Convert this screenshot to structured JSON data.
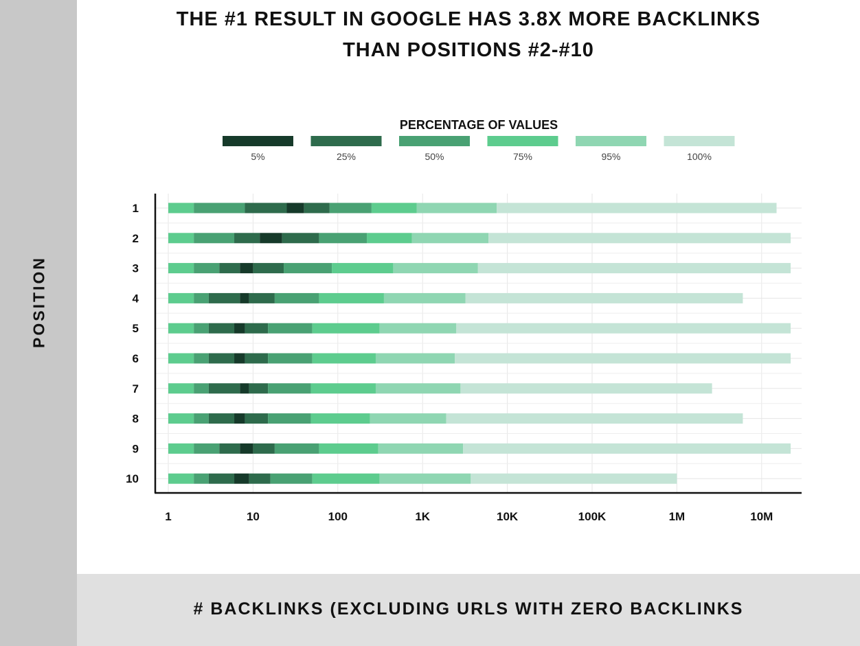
{
  "chart_data": {
    "type": "bar",
    "subtype": "stacked-percentile-range",
    "title_lines": [
      "THE #1 RESULT IN GOOGLE HAS 3.8X MORE BACKLINKS",
      "THAN POSITIONS #2-#10"
    ],
    "ylabel": "POSITION",
    "xlabel": "# BACKLINKS (EXCLUDING URLS WITH ZERO BACKLINKS",
    "x_scale": "log",
    "xlim": [
      1,
      25000000
    ],
    "x_ticks": [
      {
        "value": 1,
        "label": "1"
      },
      {
        "value": 10,
        "label": "10"
      },
      {
        "value": 100,
        "label": "100"
      },
      {
        "value": 1000,
        "label": "1K"
      },
      {
        "value": 10000,
        "label": "10K"
      },
      {
        "value": 100000,
        "label": "100K"
      },
      {
        "value": 1000000,
        "label": "1M"
      },
      {
        "value": 10000000,
        "label": "10M"
      }
    ],
    "grid": true,
    "legend": {
      "title": "PERCENTAGE OF VALUES",
      "placement": "top-center",
      "entries": [
        {
          "label": "5%",
          "color": "#163a2a"
        },
        {
          "label": "25%",
          "color": "#2e6b4c"
        },
        {
          "label": "50%",
          "color": "#49a173"
        },
        {
          "label": "75%",
          "color": "#5dcc8e"
        },
        {
          "label": "95%",
          "color": "#8fd6b2"
        },
        {
          "label": "100%",
          "color": "#c4e4d6"
        }
      ]
    },
    "segment_colors": [
      "#5dcc8e",
      "#49a173",
      "#2e6b4c",
      "#163a2a",
      "#2e6b4c",
      "#49a173",
      "#5dcc8e",
      "#8fd6b2",
      "#c4e4d6"
    ],
    "categories": [
      "1",
      "2",
      "3",
      "4",
      "5",
      "6",
      "7",
      "8",
      "9",
      "10"
    ],
    "series": [
      {
        "category": "1",
        "bounds": [
          1,
          2,
          8,
          25,
          40,
          80,
          250,
          850,
          7500,
          15000000
        ]
      },
      {
        "category": "2",
        "bounds": [
          1,
          2,
          6,
          12,
          22,
          60,
          220,
          750,
          6000,
          22000000
        ]
      },
      {
        "category": "3",
        "bounds": [
          1,
          2,
          4,
          7,
          10,
          23,
          85,
          450,
          4500,
          22000000
        ]
      },
      {
        "category": "4",
        "bounds": [
          1,
          2,
          3,
          7,
          9,
          18,
          60,
          350,
          3200,
          6000000
        ]
      },
      {
        "category": "5",
        "bounds": [
          1,
          2,
          3,
          6,
          8,
          15,
          50,
          310,
          2500,
          22000000
        ]
      },
      {
        "category": "6",
        "bounds": [
          1,
          2,
          3,
          6,
          8,
          15,
          50,
          280,
          2400,
          22000000
        ]
      },
      {
        "category": "7",
        "bounds": [
          1,
          2,
          3,
          7,
          9,
          15,
          48,
          280,
          2800,
          2600000
        ]
      },
      {
        "category": "8",
        "bounds": [
          1,
          2,
          3,
          6,
          8,
          15,
          48,
          240,
          1900,
          6000000
        ]
      },
      {
        "category": "9",
        "bounds": [
          1,
          2,
          4,
          7,
          10,
          18,
          60,
          300,
          3000,
          22000000
        ]
      },
      {
        "category": "10",
        "bounds": [
          1,
          2,
          3,
          6,
          9,
          16,
          50,
          310,
          3700,
          1000000
        ]
      }
    ]
  }
}
